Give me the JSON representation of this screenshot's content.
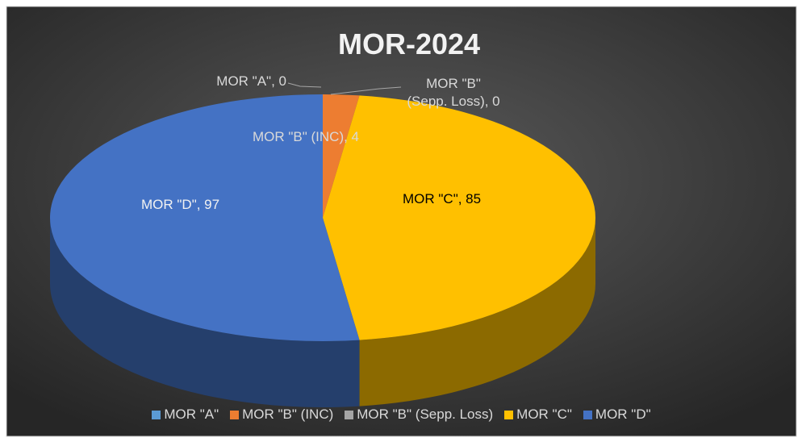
{
  "chart_data": {
    "type": "pie",
    "title": "MOR-2024",
    "categories": [
      "MOR \"A\"",
      "MOR \"B\" (INC)",
      "MOR \"B\" (Sepp. Loss)",
      "MOR \"C\"",
      "MOR \"D\""
    ],
    "values": [
      0,
      4,
      0,
      85,
      97
    ],
    "value_labels": [
      "MOR \"A\", 0",
      "MOR \"B\" (INC), 4",
      "MOR \"B\" (Sepp. Loss), 0",
      "MOR \"C\", 85",
      "MOR \"D\", 97"
    ],
    "colors": [
      "#5b9bd5",
      "#ed7d31",
      "#a5a5a5",
      "#ffc000",
      "#4472c4"
    ],
    "legend": "bottom"
  }
}
